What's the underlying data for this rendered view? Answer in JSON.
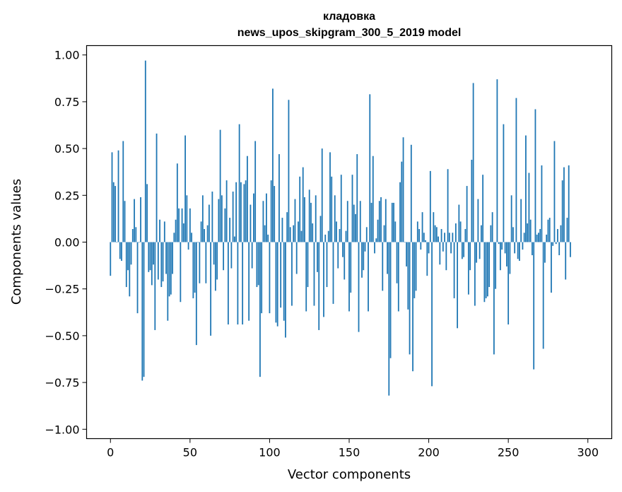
{
  "chart_data": {
    "type": "bar",
    "title": "кладовка",
    "subtitle": "news_upos_skipgram_300_5_2019 model",
    "xlabel": "Vector components",
    "ylabel": "Components values",
    "xlim": [
      -15,
      315
    ],
    "ylim": [
      -1.05,
      1.05
    ],
    "xticks": [
      0,
      50,
      100,
      150,
      200,
      250,
      300
    ],
    "xtick_labels": [
      "0",
      "50",
      "100",
      "150",
      "200",
      "250",
      "300"
    ],
    "yticks": [
      1.0,
      0.75,
      0.5,
      0.25,
      0.0,
      -0.25,
      -0.5,
      -0.75,
      -1.0
    ],
    "ytick_labels": [
      "1.00",
      "0.75",
      "0.50",
      "0.25",
      "0.00",
      "−0.25",
      "−0.50",
      "−0.75",
      "−1.00"
    ],
    "grid": false,
    "bar_color": "#1f77b4",
    "values": [
      -0.18,
      0.48,
      0.32,
      0.3,
      0.0,
      0.49,
      -0.09,
      -0.1,
      0.54,
      0.22,
      -0.24,
      -0.15,
      -0.29,
      -0.12,
      0.07,
      0.23,
      0.08,
      -0.38,
      0.0,
      0.24,
      -0.74,
      -0.72,
      0.97,
      0.31,
      -0.16,
      -0.15,
      -0.23,
      -0.12,
      -0.47,
      0.58,
      -0.2,
      0.12,
      -0.24,
      -0.21,
      0.11,
      -0.17,
      -0.42,
      -0.29,
      -0.28,
      -0.17,
      0.05,
      0.12,
      0.42,
      0.18,
      -0.32,
      0.18,
      0.1,
      0.57,
      0.25,
      -0.04,
      0.18,
      0.05,
      -0.3,
      -0.27,
      -0.55,
      0.0,
      -0.22,
      0.11,
      0.25,
      0.07,
      -0.22,
      0.09,
      0.2,
      -0.5,
      0.27,
      -0.12,
      -0.26,
      -0.2,
      0.23,
      0.6,
      0.25,
      -0.15,
      0.18,
      0.33,
      -0.44,
      0.13,
      -0.14,
      0.27,
      0.03,
      0.32,
      -0.44,
      0.63,
      0.32,
      -0.44,
      0.31,
      0.33,
      0.46,
      -0.42,
      0.2,
      -0.14,
      0.26,
      0.54,
      -0.24,
      -0.23,
      -0.72,
      -0.38,
      0.22,
      0.09,
      0.26,
      0.04,
      -0.38,
      0.33,
      0.82,
      0.3,
      -0.43,
      -0.45,
      0.47,
      -0.35,
      0.13,
      -0.42,
      -0.51,
      0.16,
      0.76,
      0.08,
      -0.34,
      0.09,
      0.23,
      -0.17,
      0.11,
      0.35,
      0.06,
      0.4,
      0.24,
      -0.37,
      -0.24,
      0.28,
      0.21,
      0.1,
      -0.34,
      0.25,
      -0.16,
      -0.47,
      0.14,
      0.5,
      -0.4,
      0.04,
      -0.24,
      0.06,
      0.48,
      0.35,
      -0.33,
      0.25,
      0.11,
      -0.14,
      0.07,
      0.36,
      -0.08,
      -0.2,
      0.06,
      0.22,
      -0.37,
      -0.27,
      0.36,
      0.2,
      0.15,
      0.47,
      -0.48,
      0.22,
      -0.19,
      -0.15,
      -0.05,
      0.08,
      -0.37,
      0.79,
      0.21,
      0.46,
      -0.06,
      0.02,
      0.12,
      0.22,
      0.24,
      -0.26,
      0.09,
      0.23,
      -0.17,
      -0.82,
      -0.62,
      0.21,
      0.21,
      0.11,
      -0.22,
      -0.37,
      0.32,
      0.43,
      0.56,
      0.0,
      -0.13,
      -0.36,
      -0.6,
      0.52,
      -0.69,
      -0.3,
      -0.26,
      0.11,
      0.07,
      -0.04,
      0.16,
      0.05,
      0.01,
      -0.18,
      -0.06,
      0.38,
      -0.77,
      0.16,
      0.09,
      0.08,
      0.03,
      -0.12,
      0.07,
      -0.05,
      0.05,
      -0.15,
      0.39,
      0.05,
      -0.06,
      0.05,
      -0.3,
      0.1,
      -0.46,
      0.2,
      0.11,
      -0.09,
      -0.08,
      0.07,
      0.3,
      -0.28,
      -0.15,
      0.44,
      0.85,
      -0.34,
      -0.11,
      0.23,
      -0.09,
      0.09,
      0.36,
      -0.32,
      -0.3,
      -0.29,
      -0.24,
      0.09,
      0.16,
      -0.6,
      -0.25,
      0.87,
      -0.01,
      -0.15,
      -0.04,
      0.63,
      -0.06,
      -0.13,
      -0.44,
      -0.17,
      0.25,
      0.08,
      -0.06,
      0.77,
      -0.09,
      -0.1,
      0.23,
      -0.04,
      0.05,
      0.57,
      0.1,
      0.37,
      0.12,
      -0.07,
      -0.68,
      0.71,
      0.04,
      0.05,
      0.07,
      0.41,
      -0.57,
      -0.11,
      0.04,
      0.12,
      0.13,
      -0.27,
      -0.02,
      0.54,
      -0.01,
      0.07,
      -0.07,
      0.09,
      0.33,
      0.4,
      -0.2,
      0.13,
      0.41,
      -0.08
    ]
  }
}
